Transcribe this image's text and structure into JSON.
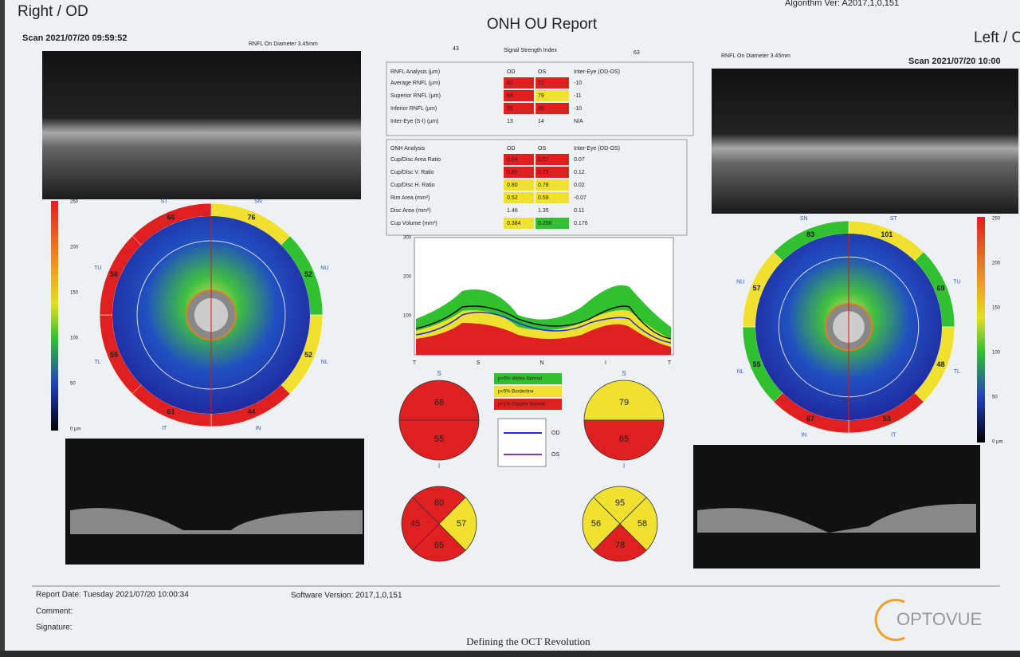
{
  "header": {
    "left_title": "Right / OD",
    "title": "ONH OU Report",
    "right_title": "Left / OS",
    "algorithm": "Algorithm Ver: A2017,1,0,151",
    "scan_od": "Scan 2021/07/20 09:59:52",
    "scan_os": "Scan 2021/07/20 10:00",
    "rnfl_diameter_od": "RNFL On Diameter 3.45mm",
    "rnfl_diameter_os": "RNFL On Diameter 3.45mm"
  },
  "signal": {
    "od": "43",
    "label": "Signal Strength Index",
    "os": "63"
  },
  "rnfl_table": {
    "header": [
      "RNFL Analysis (µm)",
      "OD",
      "OS",
      "Inter-Eye (OD-OS)"
    ],
    "rows": [
      [
        "Average RNFL (µm)",
        "62",
        "72",
        "-10"
      ],
      [
        "Superior RNFL (µm)",
        "68",
        "79",
        "-11"
      ],
      [
        "Inferior RNFL (µm)",
        "55",
        "65",
        "-10"
      ],
      [
        "Inter-Eye (S-I) (µm)",
        "13",
        "14",
        "N/A"
      ]
    ],
    "cell_colors": [
      [
        "#e02020",
        "#e02020"
      ],
      [
        "#e02020",
        "#f0e030"
      ],
      [
        "#e02020",
        "#e02020"
      ],
      [
        null,
        null
      ]
    ]
  },
  "onh_table": {
    "header": [
      "ONH Analysis",
      "OD",
      "OS",
      "Inter-Eye (OD-OS)"
    ],
    "rows": [
      [
        "Cup/Disc Area Ratio",
        "0.64",
        "0.57",
        "0.07"
      ],
      [
        "Cup/Disc V. Ratio",
        "0.85",
        "0.73",
        "0.12"
      ],
      [
        "Cup/Disc H. Ratio",
        "0.80",
        "0.78",
        "0.02"
      ],
      [
        "Rim Area (mm²)",
        "0.52",
        "0.59",
        "-0.07"
      ],
      [
        "Disc Area (mm²)",
        "1.46",
        "1.35",
        "0.11"
      ],
      [
        "Cup Volume (mm³)",
        "0.384",
        "0.208",
        "0.176"
      ]
    ],
    "cell_colors": [
      [
        "#e02020",
        "#e02020"
      ],
      [
        "#e02020",
        "#e02020"
      ],
      [
        "#f0e030",
        "#f0e030"
      ],
      [
        "#f0e030",
        "#f0e030"
      ],
      [
        null,
        null
      ],
      [
        "#f0e030",
        "#30c030"
      ]
    ]
  },
  "od_sectors": [
    {
      "label": "SN",
      "value": 76,
      "color": "#f0e030"
    },
    {
      "label": "NU",
      "value": 52,
      "color": "#30c030"
    },
    {
      "label": "NL",
      "value": 52,
      "color": "#f0e030"
    },
    {
      "label": "IN",
      "value": 44,
      "color": "#e02020"
    },
    {
      "label": "IT",
      "value": 61,
      "color": "#e02020"
    },
    {
      "label": "TL",
      "value": 55,
      "color": "#e02020"
    },
    {
      "label": "TU",
      "value": 56,
      "color": "#e02020"
    },
    {
      "label": "ST",
      "value": 66,
      "color": "#e02020"
    }
  ],
  "os_sectors": [
    {
      "label": "ST",
      "value": 101,
      "color": "#f0e030"
    },
    {
      "label": "TU",
      "value": 69,
      "color": "#30c030"
    },
    {
      "label": "TL",
      "value": 48,
      "color": "#f0e030"
    },
    {
      "label": "IT",
      "value": 53,
      "color": "#e02020"
    },
    {
      "label": "IN",
      "value": 67,
      "color": "#e02020"
    },
    {
      "label": "NL",
      "value": 55,
      "color": "#30c030"
    },
    {
      "label": "NU",
      "value": 57,
      "color": "#f0e030"
    },
    {
      "label": "SN",
      "value": 83,
      "color": "#30c030"
    }
  ],
  "color_scale": [
    "250",
    "200",
    "150",
    "100",
    "50",
    "0 µm"
  ],
  "tsnit": {
    "y_labels": [
      "300",
      "200",
      "100"
    ],
    "x_labels": [
      "T",
      "S",
      "N",
      "I",
      "T"
    ]
  },
  "hemispheres": {
    "top_label": "S",
    "bottom_label": "I",
    "od": [
      {
        "value": 68,
        "color": "#e02020"
      },
      {
        "value": 55,
        "color": "#e02020"
      }
    ],
    "os": [
      {
        "value": 79,
        "color": "#f0e030"
      },
      {
        "value": 65,
        "color": "#e02020"
      }
    ]
  },
  "quadrants": {
    "od": {
      "S": {
        "value": 80,
        "color": "#e02020"
      },
      "T": {
        "value": 45,
        "color": "#e02020"
      },
      "N": {
        "value": 57,
        "color": "#f0e030"
      },
      "I": {
        "value": 65,
        "color": "#e02020"
      }
    },
    "os": {
      "S": {
        "value": 95,
        "color": "#f0e030"
      },
      "N": {
        "value": 56,
        "color": "#f0e030"
      },
      "T": {
        "value": 58,
        "color": "#f0e030"
      },
      "I": {
        "value": 78,
        "color": "#e02020"
      }
    }
  },
  "legend": {
    "normal": "p>5% Within Normal",
    "borderline": "p<5% Borderline",
    "outside": "p<1% Outside Normal",
    "od": "OD",
    "os": "OS"
  },
  "footer": {
    "report_date": "Report Date: Tuesday 2021/07/20 10:00:34",
    "software": "Software Version: 2017,1,0,151",
    "comment": "Comment:",
    "signature": "Signature:",
    "slogan": "Defining the OCT Revolution",
    "logo": "OPTOVUE"
  }
}
